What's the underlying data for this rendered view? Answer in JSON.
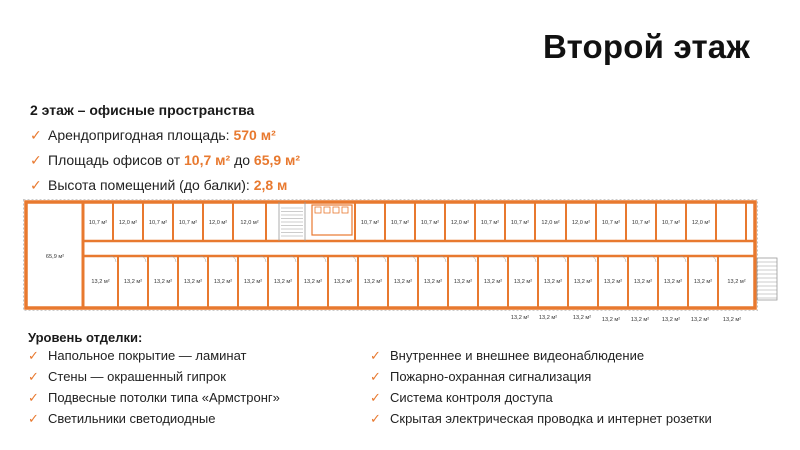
{
  "header": {
    "title": "Второй этаж"
  },
  "summary": {
    "title": "2 этаж – офисные пространства",
    "items": [
      {
        "label": "Арендопригодная площадь:",
        "value": "570 м²"
      },
      {
        "label": "Площадь офисов от",
        "value": "10,7 м²",
        "middle": "до",
        "value2": "65,9 м²"
      },
      {
        "label": "Высота помещений (до балки):",
        "value": "2,8 м"
      }
    ]
  },
  "floorplan": {
    "colors": {
      "wall": "#e8792f",
      "line": "#999999"
    },
    "big_room": "65,9 м²",
    "top_rooms": [
      "10,7 м²",
      "12,0 м²",
      "10,7 м²",
      "10,7 м²",
      "12,0 м²",
      "12,0 м²",
      "10,7 м²",
      "10,7 м²",
      "10,7 м²",
      "12,0 м²",
      "10,7 м²",
      "10,7 м²",
      "12,0 м²",
      "12,0 м²",
      "10,7 м²",
      "10,7 м²",
      "10,7 м²",
      "12,0 м²"
    ],
    "bottom_rooms": [
      "13,2 м²",
      "13,2 м²",
      "13,2 м²",
      "13,2 м²",
      "13,2 м²",
      "13,2 м²",
      "13,2 м²",
      "13,2 м²",
      "13,2 м²",
      "13,2 м²",
      "13,2 м²",
      "13,2 м²",
      "13,2 м²",
      "13,2 м²",
      "13,2 м²",
      "13,2 м²",
      "13,2 м²",
      "13,2 м²",
      "13,2 м²",
      "13,2 м²",
      "13,2 м²",
      "13,2 м²",
      "13,2 м²"
    ],
    "outside_labels": [
      "13,2 м²",
      "13,2 м²",
      "13,2 м²",
      "13,2 м²",
      "13,2 м²",
      "13,2 м²",
      "13,2 м²",
      "13,2 м²",
      "13,2 м²"
    ]
  },
  "finish": {
    "title": "Уровень отделки:",
    "left": [
      "Напольное покрытие — ламинат",
      "Стены — окрашенный гипрок",
      "Подвесные потолки типа «Армстронг»",
      "Светильники светодиодные"
    ],
    "right": [
      "Внутреннее и внешнее видеонаблюдение",
      "Пожарно-охранная сигнализация",
      "Система контроля доступа",
      "Скрытая электрическая проводка и интернет розетки"
    ]
  }
}
